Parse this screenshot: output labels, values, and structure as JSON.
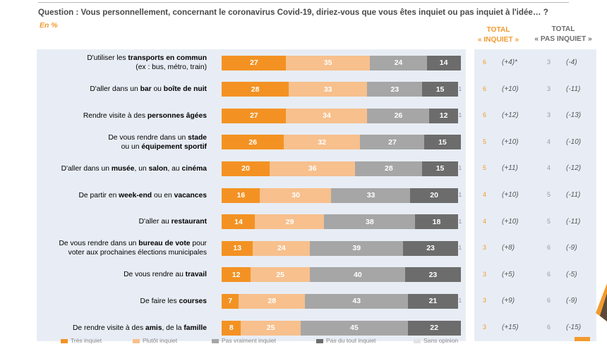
{
  "question": "Question : Vous personnellement, concernant le coronavirus Covid-19, diriez-vous que vous êtes inquiet ou pas inquiet à l'idée… ?",
  "unit": "En %",
  "col_total_inquiet": [
    "TOTAL",
    "« INQUIET »"
  ],
  "col_total_pas_inquiet": [
    "TOTAL",
    "« PAS INQUIET »"
  ],
  "colors": {
    "tres_inquiet": "#f39223",
    "plutot_inquiet": "#f7c08d",
    "plutot_pas": "#a6a6a6",
    "pas_du_tout": "#6c6c6c",
    "background": "#e8edf5"
  },
  "chart_data": {
    "type": "bar",
    "orientation": "horizontal-stacked",
    "unit": "%",
    "series": [
      {
        "name": "Très inquiet",
        "values": [
          27,
          28,
          27,
          26,
          20,
          16,
          14,
          13,
          12,
          7,
          8
        ]
      },
      {
        "name": "Plutôt inquiet",
        "values": [
          35,
          33,
          34,
          32,
          36,
          30,
          29,
          24,
          25,
          28,
          25
        ]
      },
      {
        "name": "Pas vraiment inquiet",
        "values": [
          24,
          23,
          26,
          27,
          28,
          33,
          38,
          39,
          40,
          43,
          45
        ]
      },
      {
        "name": "Pas du tout inquiet",
        "values": [
          14,
          15,
          12,
          15,
          15,
          20,
          18,
          23,
          23,
          21,
          22
        ]
      },
      {
        "name": "Sans opinion",
        "values": [
          0,
          1,
          1,
          0,
          1,
          1,
          1,
          1,
          0,
          1,
          0
        ]
      }
    ],
    "categories": [
      {
        "lines": [
          [
            {
              "t": "D'utiliser les "
            },
            {
              "t": "transports en commun",
              "b": true
            }
          ],
          [
            {
              "t": "(ex : bus, métro, train)"
            }
          ]
        ]
      },
      {
        "lines": [
          [
            {
              "t": "D'aller dans un "
            },
            {
              "t": "bar",
              "b": true
            },
            {
              "t": " ou "
            },
            {
              "t": "boîte de nuit",
              "b": true
            }
          ]
        ]
      },
      {
        "lines": [
          [
            {
              "t": "Rendre visite à des "
            },
            {
              "t": "personnes âgées",
              "b": true
            }
          ]
        ]
      },
      {
        "lines": [
          [
            {
              "t": "De vous rendre dans un "
            },
            {
              "t": "stade",
              "b": true
            }
          ],
          [
            {
              "t": "ou un "
            },
            {
              "t": "équipement sportif",
              "b": true
            }
          ]
        ]
      },
      {
        "lines": [
          [
            {
              "t": "D'aller dans un "
            },
            {
              "t": "musée",
              "b": true
            },
            {
              "t": ", un "
            },
            {
              "t": "salon",
              "b": true
            },
            {
              "t": ", au "
            },
            {
              "t": "cinéma",
              "b": true
            }
          ]
        ]
      },
      {
        "lines": [
          [
            {
              "t": "De partir en "
            },
            {
              "t": "week-end",
              "b": true
            },
            {
              "t": " ou en "
            },
            {
              "t": "vacances",
              "b": true
            }
          ]
        ]
      },
      {
        "lines": [
          [
            {
              "t": "D'aller au "
            },
            {
              "t": "restaurant",
              "b": true
            }
          ]
        ]
      },
      {
        "lines": [
          [
            {
              "t": "De vous rendre dans un "
            },
            {
              "t": "bureau de vote",
              "b": true
            },
            {
              "t": " pour"
            }
          ],
          [
            {
              "t": "voter aux prochaines élections municipales"
            }
          ]
        ]
      },
      {
        "lines": [
          [
            {
              "t": "De vous rendre au "
            },
            {
              "t": "travail",
              "b": true
            }
          ]
        ]
      },
      {
        "lines": [
          [
            {
              "t": "De faire les "
            },
            {
              "t": "courses",
              "b": true
            }
          ]
        ]
      },
      {
        "lines": [
          [
            {
              "t": "De rendre visite à des "
            },
            {
              "t": "amis",
              "b": true
            },
            {
              "t": ", de la "
            },
            {
              "t": "famille",
              "b": true
            }
          ]
        ]
      }
    ],
    "total_inquiet_diff": [
      "(+4)*",
      "(+10)",
      "(+12)",
      "(+10)",
      "(+11)",
      "(+10)",
      "(+10)",
      "(+8)",
      "(+5)",
      "(+9)",
      "(+15)"
    ],
    "total_pas_inquiet_diff": [
      "(-4)",
      "(-11)",
      "(-13)",
      "(-10)",
      "(-12)",
      "(-11)",
      "(-11)",
      "(-9)",
      "(-5)",
      "(-9)",
      "(-15)"
    ],
    "total_inquiet_partial": [
      "6",
      "6",
      "6",
      "5",
      "5",
      "4",
      "4",
      "3",
      "3",
      "3",
      "3"
    ],
    "total_pas_inquiet_partial": [
      "3",
      "3",
      "3",
      "4",
      "4",
      "5",
      "5",
      "6",
      "6",
      "6",
      "6"
    ],
    "legend": [
      "Très inquiet",
      "Plutôt inquiet",
      "Pas vraiment inquiet",
      "Pas du tout inquiet",
      "Sans opinion"
    ]
  }
}
